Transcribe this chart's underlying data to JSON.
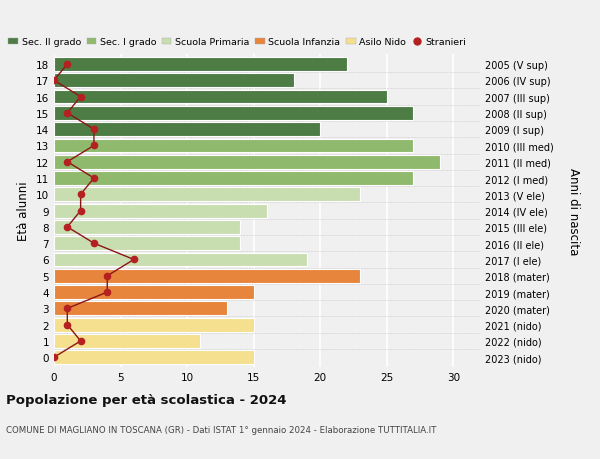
{
  "ages": [
    0,
    1,
    2,
    3,
    4,
    5,
    6,
    7,
    8,
    9,
    10,
    11,
    12,
    13,
    14,
    15,
    16,
    17,
    18
  ],
  "right_labels": [
    "2023 (nido)",
    "2022 (nido)",
    "2021 (nido)",
    "2020 (mater)",
    "2019 (mater)",
    "2018 (mater)",
    "2017 (I ele)",
    "2016 (II ele)",
    "2015 (III ele)",
    "2014 (IV ele)",
    "2013 (V ele)",
    "2012 (I med)",
    "2011 (II med)",
    "2010 (III med)",
    "2009 (I sup)",
    "2008 (II sup)",
    "2007 (III sup)",
    "2006 (IV sup)",
    "2005 (V sup)"
  ],
  "bar_values": [
    15,
    11,
    15,
    13,
    15,
    23,
    19,
    14,
    14,
    16,
    23,
    27,
    29,
    27,
    20,
    27,
    25,
    18,
    22
  ],
  "bar_colors": [
    "#f5e090",
    "#f5e090",
    "#f5e090",
    "#e8853d",
    "#e8853d",
    "#e8853d",
    "#c8ddb0",
    "#c8ddb0",
    "#c8ddb0",
    "#c8ddb0",
    "#c8ddb0",
    "#8fba6e",
    "#8fba6e",
    "#8fba6e",
    "#4e7c45",
    "#4e7c45",
    "#4e7c45",
    "#4e7c45",
    "#4e7c45"
  ],
  "stranieri_values": [
    0,
    2,
    1,
    1,
    4,
    4,
    6,
    3,
    1,
    2,
    2,
    3,
    1,
    3,
    3,
    1,
    2,
    0,
    1
  ],
  "title": "Popolazione per età scolastica - 2024",
  "subtitle": "COMUNE DI MAGLIANO IN TOSCANA (GR) - Dati ISTAT 1° gennaio 2024 - Elaborazione TUTTITALIA.IT",
  "ylabel": "Età alunni",
  "right_ylabel": "Anni di nascita",
  "xlim": [
    0,
    32
  ],
  "xticks": [
    0,
    5,
    10,
    15,
    20,
    25,
    30
  ],
  "legend_labels": [
    "Sec. II grado",
    "Sec. I grado",
    "Scuola Primaria",
    "Scuola Infanzia",
    "Asilo Nido",
    "Stranieri"
  ],
  "legend_colors": [
    "#4e7c45",
    "#8fba6e",
    "#c8ddb0",
    "#e8853d",
    "#f5e090",
    "#b52020"
  ],
  "bg_color": "#f0f0f0",
  "grid_color": "#ffffff",
  "bar_height": 0.85,
  "stranieri_color": "#b52020",
  "stranieri_line_color": "#8b1515"
}
